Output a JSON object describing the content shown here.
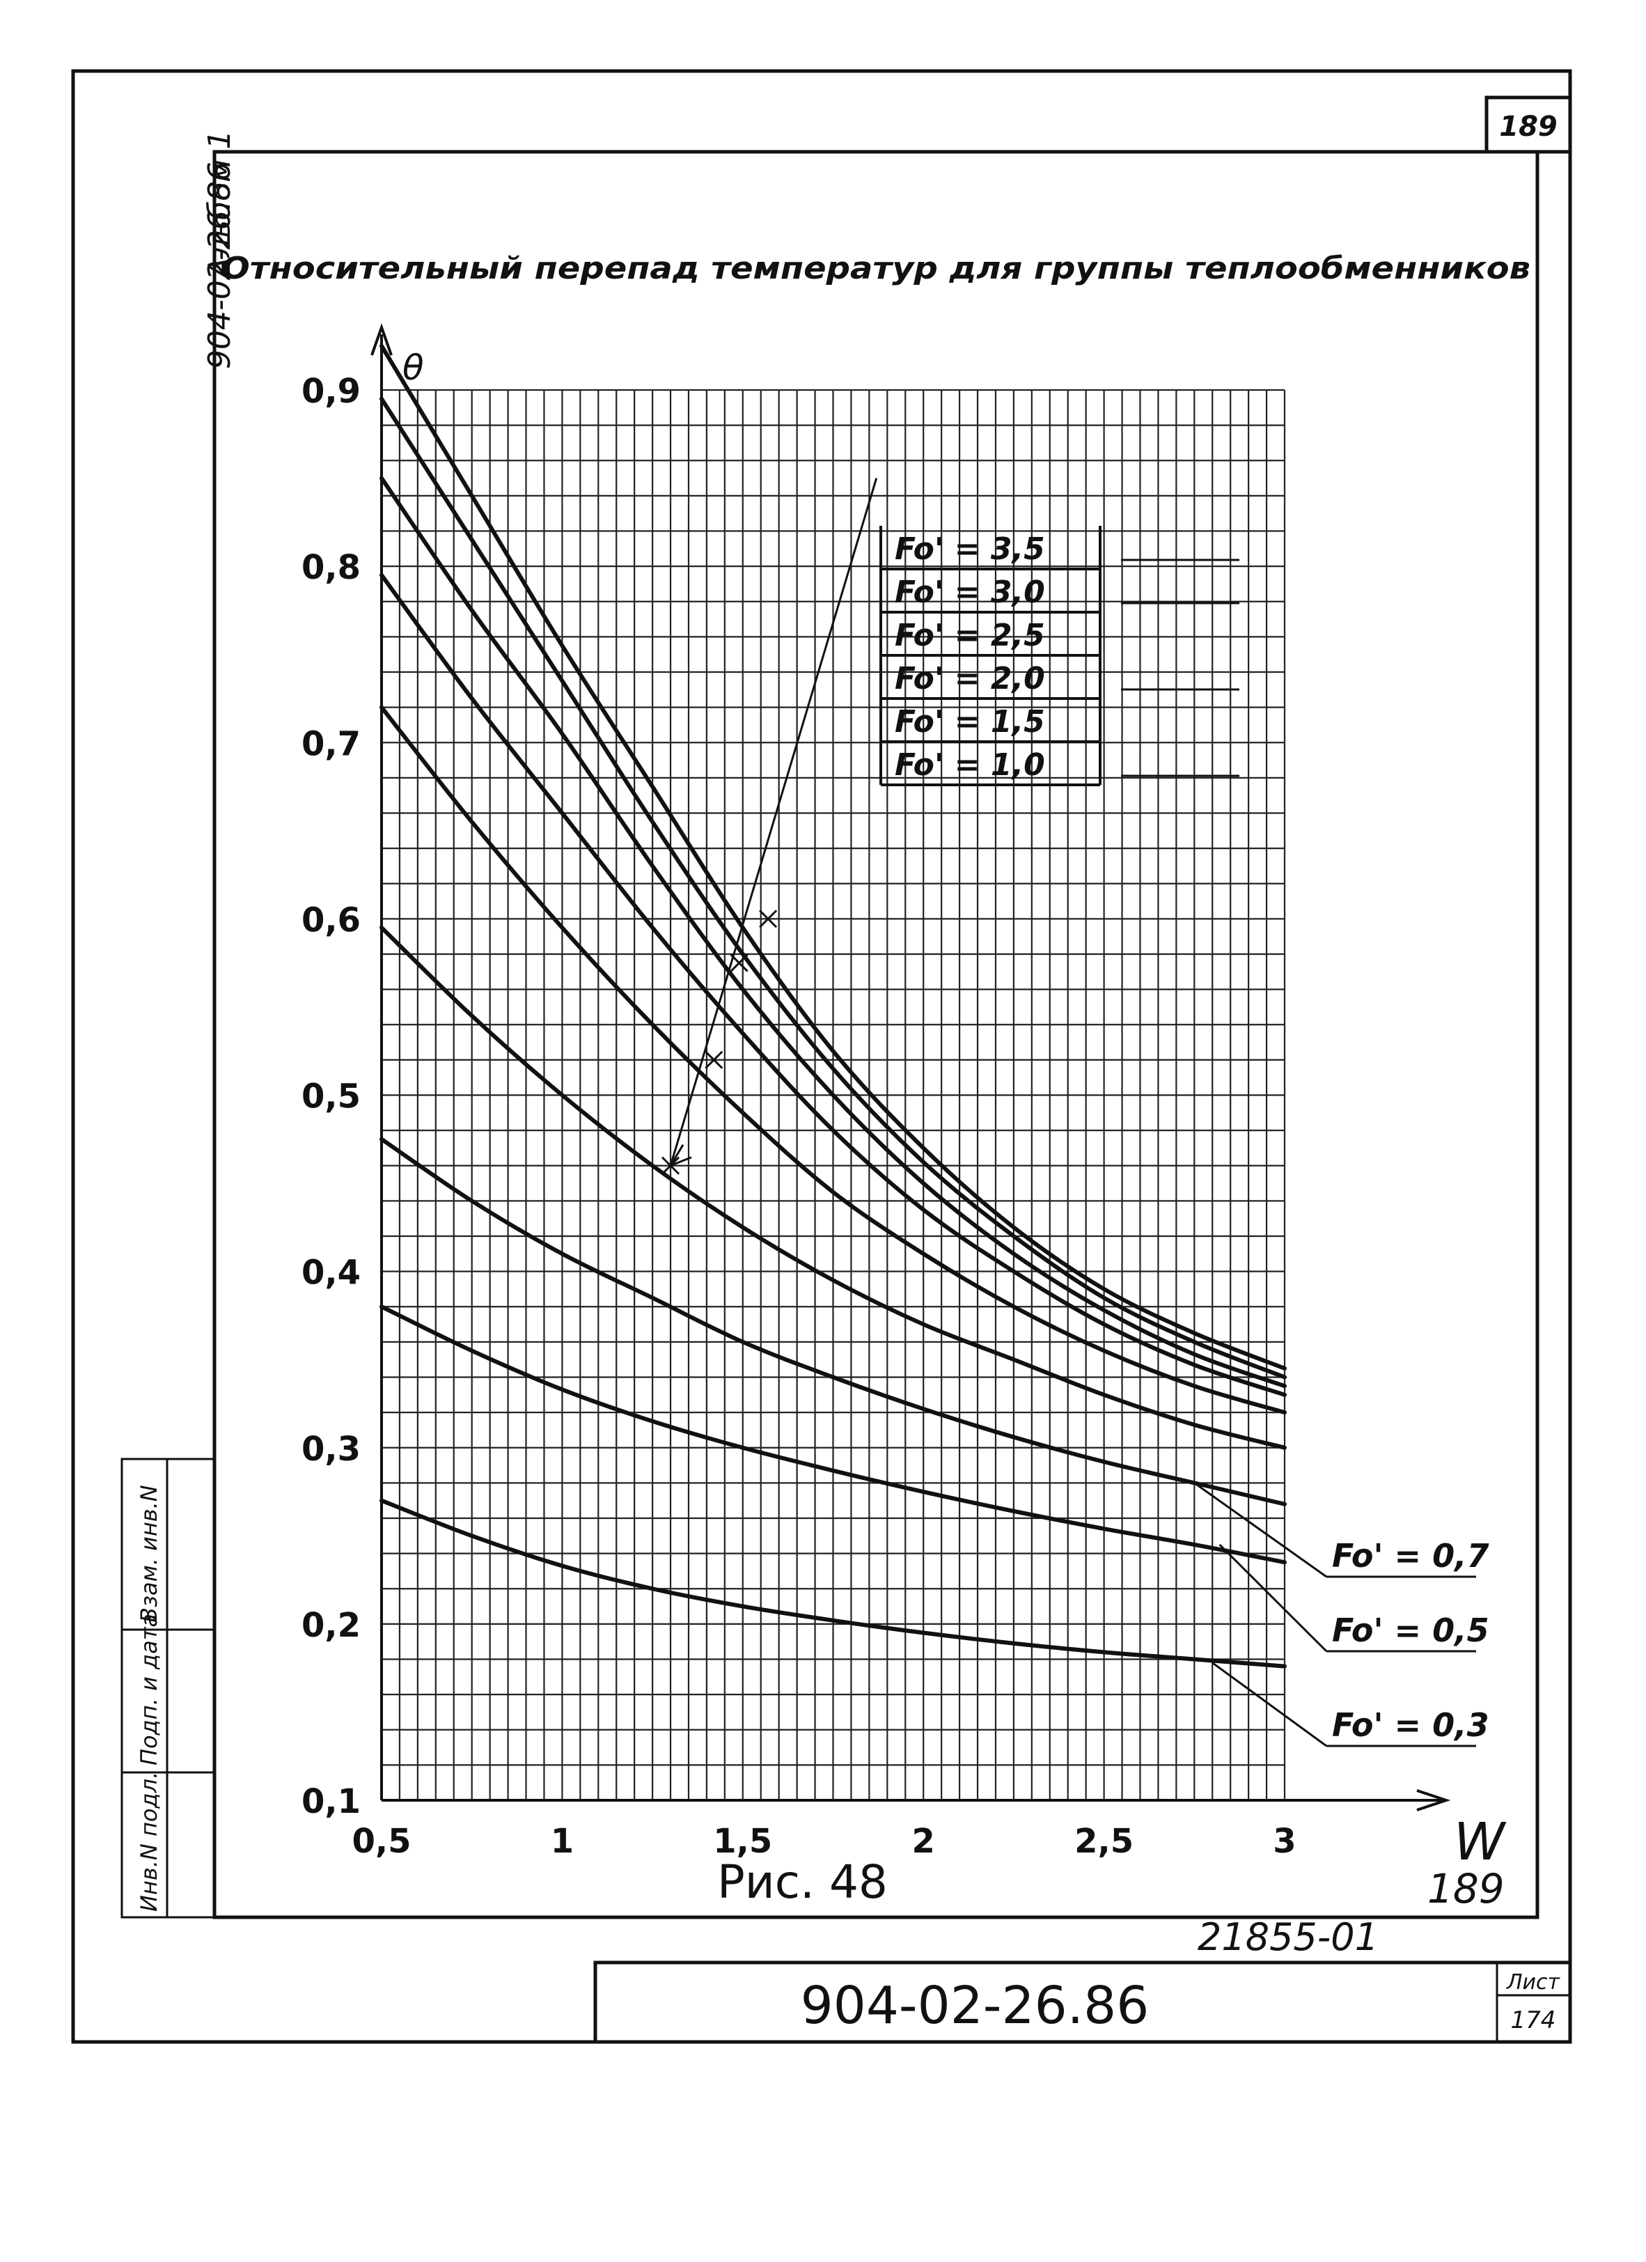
{
  "sheet": {
    "page_number": "189",
    "side_album": "Альбом 1",
    "side_code": "904-02-26.86",
    "figure_caption": "Рис. 48",
    "handwritten_page": "189",
    "stamp_number": "21855-01",
    "document_code": "904-02-26.86",
    "list_label": "Лист",
    "list_number": "174",
    "side_boxes": [
      "Инв.N подл.",
      "Подп. и дата",
      "Взам. инв.N"
    ]
  },
  "chart_data": {
    "type": "line",
    "title": "Относительный перепад температур для группы теплообменников",
    "xlabel": "W",
    "ylabel": "θ",
    "xlim": [
      0.5,
      3
    ],
    "ylim": [
      0.1,
      0.9
    ],
    "x_ticks": [
      "0,5",
      "1",
      "1,5",
      "2",
      "2,5",
      "3"
    ],
    "y_ticks": [
      "0,1",
      "0,2",
      "0,3",
      "0,4",
      "0,5",
      "0,6",
      "0,7",
      "0,8",
      "0,9"
    ],
    "grid": true,
    "legend_position": "top-right",
    "x": [
      0.5,
      0.75,
      1.0,
      1.25,
      1.5,
      1.75,
      2.0,
      2.25,
      2.5,
      2.75,
      3.0
    ],
    "series": [
      {
        "name": "Fo' = 3,5",
        "values": [
          0.925,
          0.84,
          0.755,
          0.675,
          0.595,
          0.525,
          0.47,
          0.425,
          0.39,
          0.365,
          0.345
        ]
      },
      {
        "name": "Fo' = 3,0",
        "values": [
          0.895,
          0.815,
          0.735,
          0.655,
          0.58,
          0.515,
          0.462,
          0.42,
          0.385,
          0.36,
          0.34
        ]
      },
      {
        "name": "Fo' = 2,5",
        "values": [
          0.85,
          0.775,
          0.705,
          0.63,
          0.56,
          0.5,
          0.45,
          0.41,
          0.378,
          0.353,
          0.335
        ]
      },
      {
        "name": "Fo' = 2,0",
        "values": [
          0.795,
          0.725,
          0.66,
          0.595,
          0.535,
          0.48,
          0.435,
          0.4,
          0.37,
          0.347,
          0.33
        ]
      },
      {
        "name": "Fo' = 1,5",
        "values": [
          0.72,
          0.655,
          0.595,
          0.54,
          0.49,
          0.445,
          0.41,
          0.38,
          0.355,
          0.335,
          0.32
        ]
      },
      {
        "name": "Fo' = 1,0",
        "values": [
          0.595,
          0.545,
          0.5,
          0.46,
          0.425,
          0.395,
          0.37,
          0.35,
          0.33,
          0.313,
          0.3
        ]
      },
      {
        "name": "Fo' = 0,7",
        "values": [
          0.475,
          0.44,
          0.41,
          0.385,
          0.36,
          0.34,
          0.322,
          0.306,
          0.292,
          0.28,
          0.268
        ]
      },
      {
        "name": "Fo' = 0,5",
        "values": [
          0.38,
          0.355,
          0.333,
          0.315,
          0.3,
          0.287,
          0.275,
          0.264,
          0.254,
          0.245,
          0.235
        ]
      },
      {
        "name": "Fo' = 0,3",
        "values": [
          0.27,
          0.25,
          0.233,
          0.22,
          0.21,
          0.202,
          0.195,
          0.189,
          0.184,
          0.18,
          0.176
        ]
      }
    ],
    "legend_box": [
      "Fo' = 3,5",
      "Fo' = 3,0",
      "Fo' = 2,5",
      "Fo' = 2,0",
      "Fo' = 1,5",
      "Fo' = 1,0"
    ],
    "outside_labels": [
      "Fo' = 0,7",
      "Fo' = 0,5",
      "Fo' = 0,3"
    ],
    "arrow_annotation_points": [
      {
        "x": 1.3,
        "y": 0.46
      },
      {
        "x": 1.42,
        "y": 0.52
      },
      {
        "x": 1.49,
        "y": 0.575
      },
      {
        "x": 1.57,
        "y": 0.6
      }
    ]
  }
}
